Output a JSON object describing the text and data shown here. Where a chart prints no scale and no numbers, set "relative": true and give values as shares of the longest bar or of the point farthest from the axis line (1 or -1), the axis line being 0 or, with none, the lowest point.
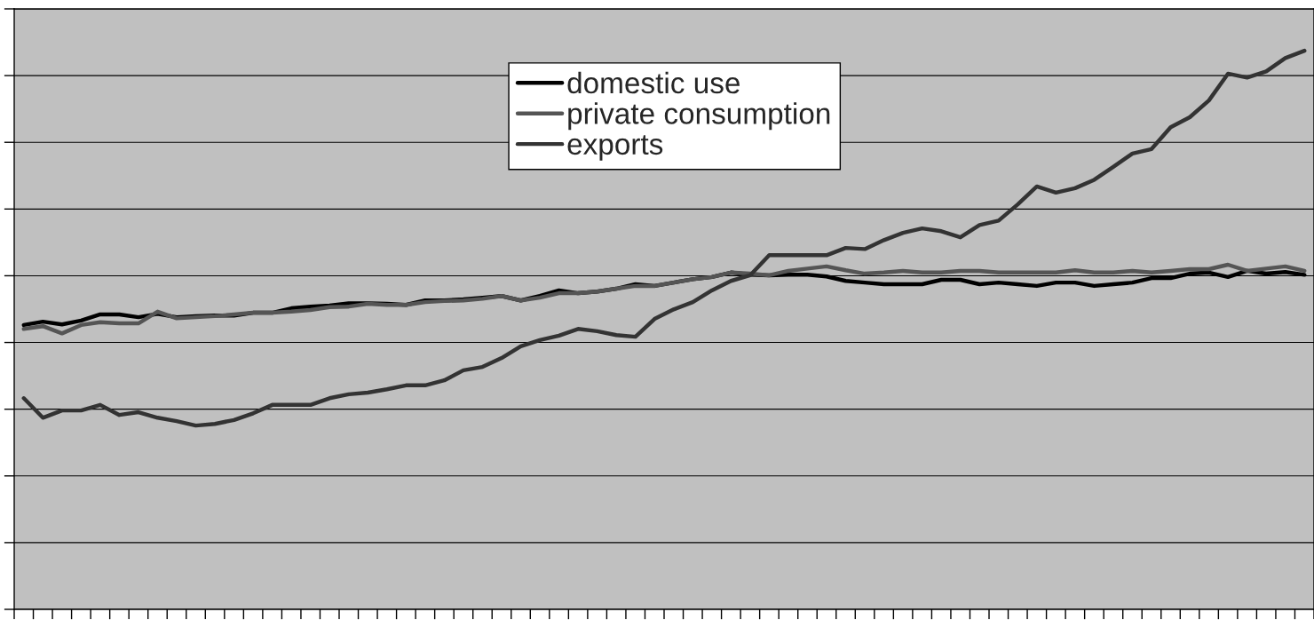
{
  "chart_data": {
    "type": "line",
    "relative": true,
    "grid": "y",
    "legend": "top",
    "marker": "none",
    "line_style": "solid",
    "categories": [
      null,
      null,
      null,
      null,
      null,
      null,
      null,
      null,
      null,
      null,
      null,
      null,
      null,
      null,
      null,
      null,
      null,
      null,
      null,
      null,
      null,
      null,
      null,
      null,
      null,
      null,
      null,
      null,
      null,
      null,
      null,
      null,
      null,
      null,
      null,
      null,
      null,
      null,
      null,
      null,
      null,
      null,
      null,
      null,
      null,
      null,
      null,
      null,
      null,
      null,
      null,
      null,
      null,
      null,
      null,
      null,
      null,
      null,
      null,
      null,
      null,
      null,
      null,
      null,
      null,
      null,
      null,
      null
    ],
    "series": [
      {
        "name": "domestic use",
        "color": "#000000",
        "values": [
          0.509,
          0.515,
          0.51,
          0.517,
          0.528,
          0.528,
          0.523,
          0.529,
          0.523,
          0.525,
          0.526,
          0.526,
          0.531,
          0.531,
          0.539,
          0.542,
          0.544,
          0.548,
          0.548,
          0.547,
          0.545,
          0.553,
          0.553,
          0.555,
          0.558,
          0.561,
          0.553,
          0.561,
          0.571,
          0.566,
          0.569,
          0.574,
          0.582,
          0.579,
          0.585,
          0.591,
          0.595,
          0.603,
          0.599,
          0.598,
          0.599,
          0.599,
          0.596,
          0.588,
          0.585,
          0.582,
          0.582,
          0.582,
          0.59,
          0.59,
          0.582,
          0.585,
          0.582,
          0.579,
          0.585,
          0.585,
          0.579,
          0.582,
          0.585,
          0.593,
          0.593,
          0.601,
          0.603,
          0.595,
          0.606,
          0.601,
          0.604,
          0.599
        ]
      },
      {
        "name": "private consumption",
        "color": "#555555",
        "values": [
          0.502,
          0.507,
          0.494,
          0.509,
          0.514,
          0.512,
          0.512,
          0.533,
          0.521,
          0.523,
          0.525,
          0.528,
          0.531,
          0.531,
          0.533,
          0.536,
          0.541,
          0.542,
          0.547,
          0.545,
          0.545,
          0.55,
          0.552,
          0.553,
          0.556,
          0.561,
          0.553,
          0.558,
          0.566,
          0.566,
          0.569,
          0.574,
          0.579,
          0.579,
          0.585,
          0.591,
          0.595,
          0.603,
          0.601,
          0.598,
          0.606,
          0.61,
          0.614,
          0.607,
          0.601,
          0.603,
          0.606,
          0.603,
          0.603,
          0.606,
          0.606,
          0.603,
          0.603,
          0.603,
          0.603,
          0.607,
          0.603,
          0.603,
          0.606,
          0.603,
          0.606,
          0.609,
          0.609,
          0.617,
          0.606,
          0.61,
          0.614,
          0.606
        ]
      },
      {
        "name": "exports",
        "color": "#333333",
        "values": [
          0.378,
          0.343,
          0.356,
          0.356,
          0.366,
          0.348,
          0.353,
          0.343,
          0.337,
          0.329,
          0.332,
          0.339,
          0.351,
          0.366,
          0.366,
          0.366,
          0.378,
          0.385,
          0.388,
          0.394,
          0.401,
          0.401,
          0.41,
          0.428,
          0.434,
          0.45,
          0.471,
          0.482,
          0.49,
          0.502,
          0.498,
          0.491,
          0.488,
          0.52,
          0.537,
          0.55,
          0.571,
          0.588,
          0.598,
          0.634,
          0.634,
          0.634,
          0.634,
          0.647,
          0.645,
          0.661,
          0.674,
          0.682,
          0.677,
          0.666,
          0.688,
          0.696,
          0.725,
          0.757,
          0.746,
          0.754,
          0.769,
          0.792,
          0.816,
          0.824,
          0.863,
          0.881,
          0.911,
          0.959,
          0.952,
          0.963,
          0.987,
          1.0
        ]
      }
    ]
  }
}
